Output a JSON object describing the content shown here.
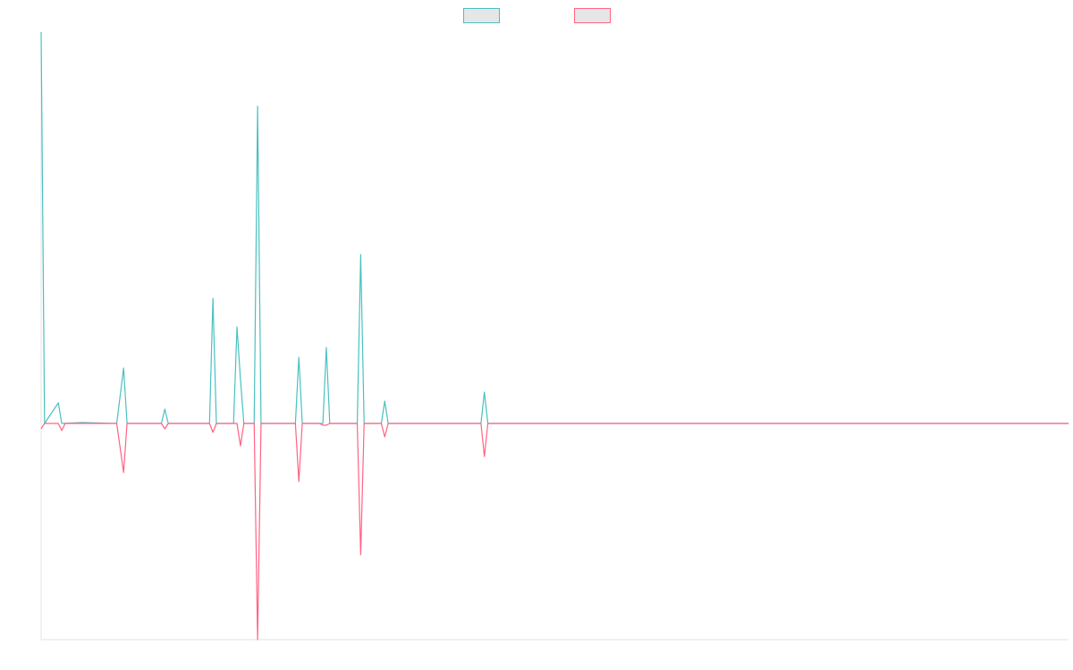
{
  "chart_data": {
    "type": "line",
    "title": "",
    "xlabel": "",
    "ylabel": "",
    "legend_position": "top-center",
    "grid": false,
    "x": [
      0,
      1,
      2,
      3,
      4,
      5,
      6,
      7,
      8,
      9,
      10,
      11,
      12,
      13,
      14,
      15,
      16,
      17,
      18,
      19,
      20,
      21,
      22,
      23,
      24,
      25,
      26,
      27,
      28,
      29,
      30,
      31,
      32,
      33,
      34,
      35,
      36,
      37,
      38,
      39,
      40,
      41,
      42,
      43,
      44,
      45,
      46,
      47,
      48,
      49,
      50,
      51,
      52,
      53,
      54,
      55,
      56,
      57,
      58,
      59,
      60,
      61,
      62,
      63,
      64,
      65,
      66,
      67,
      68,
      69,
      70,
      71,
      72,
      73,
      74,
      75,
      76,
      77,
      78,
      79,
      80,
      81,
      82,
      83,
      84,
      85,
      86,
      87,
      88,
      89,
      90,
      91,
      92,
      93,
      94,
      95,
      96,
      97,
      98,
      99,
      100,
      101,
      102,
      103,
      104,
      105,
      106,
      107,
      108,
      109,
      110,
      111,
      112,
      113,
      114,
      115,
      116,
      117,
      118,
      119,
      120,
      121,
      122,
      123,
      124,
      125,
      126,
      127,
      128,
      129,
      130,
      131,
      132,
      133,
      134,
      135,
      136,
      137,
      138,
      139,
      140,
      141,
      142,
      143,
      144,
      145,
      146,
      147,
      148,
      149,
      150,
      151,
      152,
      153,
      154,
      155,
      156,
      157,
      158,
      159,
      160,
      161,
      162,
      163,
      164,
      165,
      166,
      167,
      168,
      169,
      170,
      171,
      172,
      173,
      174,
      175,
      176,
      177,
      178,
      179,
      180,
      181,
      182,
      183,
      184,
      185,
      186,
      187,
      188,
      189,
      190,
      191,
      192,
      193,
      194,
      195,
      196,
      197,
      198,
      199,
      200,
      201,
      202,
      203,
      204,
      205,
      206,
      207,
      208,
      209,
      210,
      211,
      212,
      213,
      214,
      215,
      216,
      217,
      218,
      219,
      220,
      221,
      222,
      223,
      224,
      225,
      226,
      227,
      228,
      229,
      230,
      231,
      232,
      233,
      234,
      235,
      236,
      237,
      238,
      239,
      240,
      241,
      242,
      243,
      244,
      245,
      246,
      247,
      248,
      249,
      250,
      251,
      252,
      253,
      254,
      255,
      256,
      257,
      258,
      259,
      260,
      261,
      262,
      263,
      264,
      265,
      266,
      267,
      268,
      269,
      270,
      271,
      272,
      273,
      274,
      275,
      276,
      277,
      278,
      279,
      280,
      281,
      282,
      283,
      284,
      285,
      286,
      287,
      288,
      289,
      290,
      291,
      292,
      293,
      294,
      295,
      296,
      297,
      298,
      299
    ],
    "ylim": [
      -242,
      438
    ],
    "series": [
      {
        "name": "",
        "color": "#4bc0c0",
        "points": [
          [
            0,
            438
          ],
          [
            1,
            0
          ],
          [
            5,
            23
          ],
          [
            6,
            0
          ],
          [
            12,
            1
          ],
          [
            22,
            0
          ],
          [
            24,
            62
          ],
          [
            25,
            0
          ],
          [
            35,
            0
          ],
          [
            36,
            16
          ],
          [
            37,
            0
          ],
          [
            49,
            0
          ],
          [
            50,
            140
          ],
          [
            51,
            0
          ],
          [
            55,
            0
          ],
          [
            56,
            0
          ],
          [
            57,
            108
          ],
          [
            58,
            50
          ],
          [
            59,
            0
          ],
          [
            62,
            0
          ],
          [
            63,
            355
          ],
          [
            64,
            0
          ],
          [
            74,
            0
          ],
          [
            75,
            74
          ],
          [
            76,
            0
          ],
          [
            82,
            0
          ],
          [
            83,
            85
          ],
          [
            84,
            0
          ],
          [
            92,
            0
          ],
          [
            93,
            189
          ],
          [
            94,
            0
          ],
          [
            99,
            0
          ],
          [
            100,
            25
          ],
          [
            101,
            0
          ],
          [
            128,
            0
          ],
          [
            129,
            35
          ],
          [
            130,
            0
          ],
          [
            299,
            0
          ]
        ]
      },
      {
        "name": "",
        "color": "#ff6384",
        "points": [
          [
            0,
            -6
          ],
          [
            1,
            0
          ],
          [
            5,
            0
          ],
          [
            6,
            -8
          ],
          [
            7,
            0
          ],
          [
            22,
            0
          ],
          [
            24,
            -55
          ],
          [
            25,
            0
          ],
          [
            35,
            0
          ],
          [
            36,
            -6
          ],
          [
            37,
            0
          ],
          [
            49,
            0
          ],
          [
            50,
            -10
          ],
          [
            51,
            0
          ],
          [
            56,
            0
          ],
          [
            57,
            0
          ],
          [
            58,
            -25
          ],
          [
            59,
            0
          ],
          [
            62,
            0
          ],
          [
            63,
            -242
          ],
          [
            64,
            0
          ],
          [
            74,
            0
          ],
          [
            75,
            -65
          ],
          [
            76,
            0
          ],
          [
            81,
            0
          ],
          [
            82,
            -2
          ],
          [
            83,
            -2
          ],
          [
            84,
            0
          ],
          [
            92,
            0
          ],
          [
            93,
            -147
          ],
          [
            94,
            0
          ],
          [
            99,
            0
          ],
          [
            100,
            -15
          ],
          [
            101,
            0
          ],
          [
            128,
            0
          ],
          [
            129,
            -37
          ],
          [
            130,
            0
          ],
          [
            299,
            0
          ]
        ]
      }
    ]
  }
}
